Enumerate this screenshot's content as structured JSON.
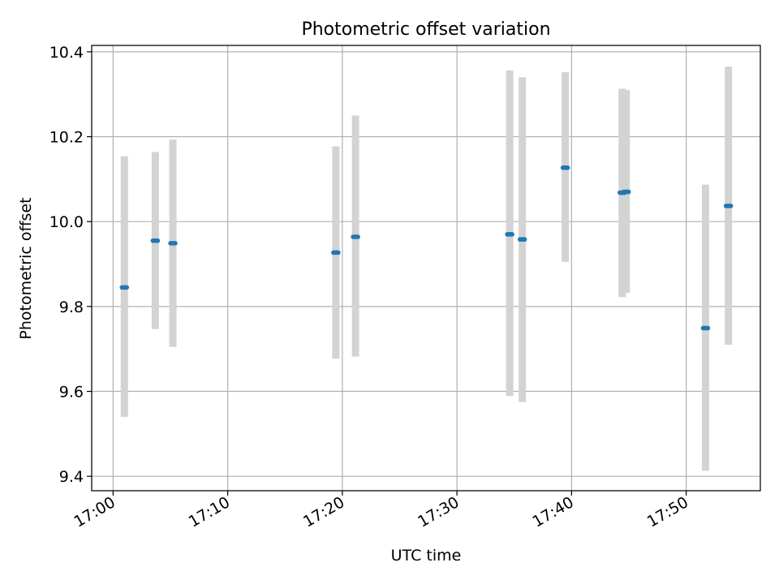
{
  "chart_data": {
    "type": "scatter",
    "title": "Photometric offset variation",
    "xlabel": "UTC time",
    "ylabel": "Photometric offset",
    "xlim": [
      "16:58:08",
      "17:56:28"
    ],
    "ylim": [
      9.366,
      10.415
    ],
    "grid": true,
    "x_ticks": [
      "17:00",
      "17:10",
      "17:20",
      "17:30",
      "17:40",
      "17:50"
    ],
    "y_ticks": [
      "9.4",
      "9.6",
      "9.8",
      "10.0",
      "10.2",
      "10.4"
    ],
    "series": [
      {
        "points": [
          {
            "x": "17:00:59",
            "y": 9.845,
            "err_low": 9.54,
            "err_high": 10.154
          },
          {
            "x": "17:03:41",
            "y": 9.955,
            "err_low": 9.747,
            "err_high": 10.164
          },
          {
            "x": "17:05:13",
            "y": 9.949,
            "err_low": 9.705,
            "err_high": 10.193
          },
          {
            "x": "17:19:26",
            "y": 9.927,
            "err_low": 9.677,
            "err_high": 10.177
          },
          {
            "x": "17:21:09",
            "y": 9.964,
            "err_low": 9.682,
            "err_high": 10.25
          },
          {
            "x": "17:34:36",
            "y": 9.97,
            "err_low": 9.589,
            "err_high": 10.356
          },
          {
            "x": "17:35:42",
            "y": 9.958,
            "err_low": 9.575,
            "err_high": 10.34
          },
          {
            "x": "17:39:27",
            "y": 10.127,
            "err_low": 9.905,
            "err_high": 10.352
          },
          {
            "x": "17:44:25",
            "y": 10.068,
            "err_low": 9.822,
            "err_high": 10.313
          },
          {
            "x": "17:44:46",
            "y": 10.07,
            "err_low": 9.832,
            "err_high": 10.31
          },
          {
            "x": "17:51:41",
            "y": 9.749,
            "err_low": 9.413,
            "err_high": 10.087
          },
          {
            "x": "17:53:41",
            "y": 10.037,
            "err_low": 9.71,
            "err_high": 10.365
          }
        ]
      }
    ],
    "colors": {
      "point": "#1f77b4",
      "errorbar": "#d3d3d3",
      "grid": "#b0b0b0",
      "axes": "#000000"
    }
  }
}
